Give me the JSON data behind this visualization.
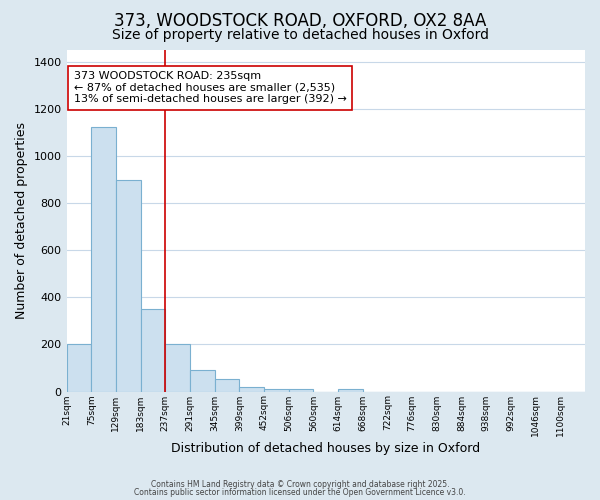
{
  "title_line1": "373, WOODSTOCK ROAD, OXFORD, OX2 8AA",
  "title_line2": "Size of property relative to detached houses in Oxford",
  "xlabel": "Distribution of detached houses by size in Oxford",
  "ylabel": "Number of detached properties",
  "bar_labels": [
    "21sqm",
    "75sqm",
    "129sqm",
    "183sqm",
    "237sqm",
    "291sqm",
    "345sqm",
    "399sqm",
    "452sqm",
    "506sqm",
    "560sqm",
    "614sqm",
    "668sqm",
    "722sqm",
    "776sqm",
    "830sqm",
    "884sqm",
    "938sqm",
    "992sqm",
    "1046sqm",
    "1100sqm"
  ],
  "bar_values": [
    200,
    1125,
    900,
    350,
    200,
    90,
    55,
    20,
    10,
    10,
    0,
    10,
    0,
    0,
    0,
    0,
    0,
    0,
    0,
    0,
    0
  ],
  "bar_color": "#cce0ef",
  "bar_edgecolor": "#7ab0d0",
  "bar_linewidth": 0.8,
  "vline_position": 4,
  "vline_color": "#cc0000",
  "vline_linewidth": 1.2,
  "annotation_text": "373 WOODSTOCK ROAD: 235sqm\n← 87% of detached houses are smaller (2,535)\n13% of semi-detached houses are larger (392) →",
  "ylim": [
    0,
    1450
  ],
  "yticks": [
    0,
    200,
    400,
    600,
    800,
    1000,
    1200,
    1400
  ],
  "bg_color": "#dce8f0",
  "plot_bg_color": "#ffffff",
  "grid_color": "#c8d8e8",
  "footer_line1": "Contains HM Land Registry data © Crown copyright and database right 2025.",
  "footer_line2": "Contains public sector information licensed under the Open Government Licence v3.0.",
  "title_fontsize": 12,
  "subtitle_fontsize": 10,
  "ylabel_fontsize": 9,
  "xlabel_fontsize": 9
}
